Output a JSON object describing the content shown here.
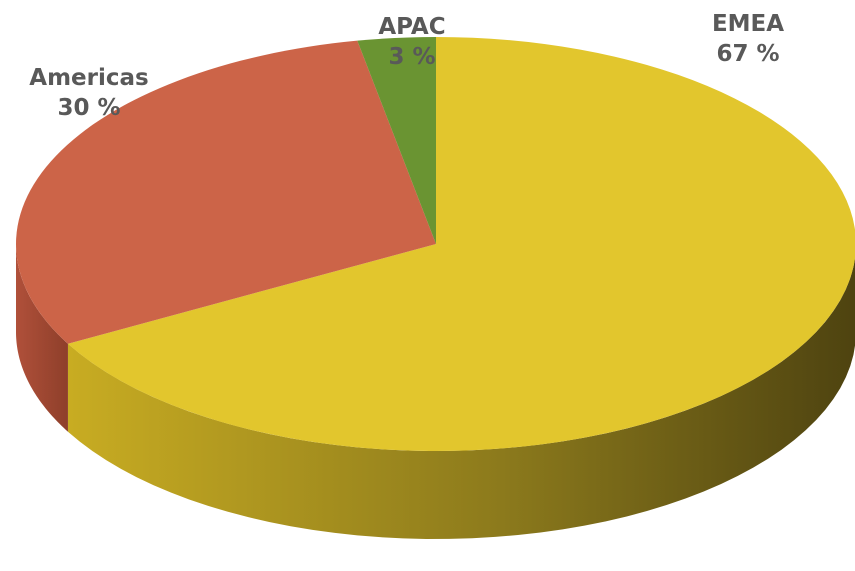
{
  "chart_data": {
    "type": "pie",
    "style": "3d",
    "title": "",
    "slices": [
      {
        "label": "EMEA",
        "value": 67,
        "value_label": "67 %",
        "color": "#E2C62D",
        "side_color": "#8C7A1C"
      },
      {
        "label": "Americas",
        "value": 30,
        "value_label": "30 %",
        "color": "#CC6448",
        "side_color": "#9A4530"
      },
      {
        "label": "APAC",
        "value": 3,
        "value_label": "3 %",
        "color": "#6A9432",
        "side_color": "#4A6A22"
      }
    ],
    "legend": "none"
  }
}
